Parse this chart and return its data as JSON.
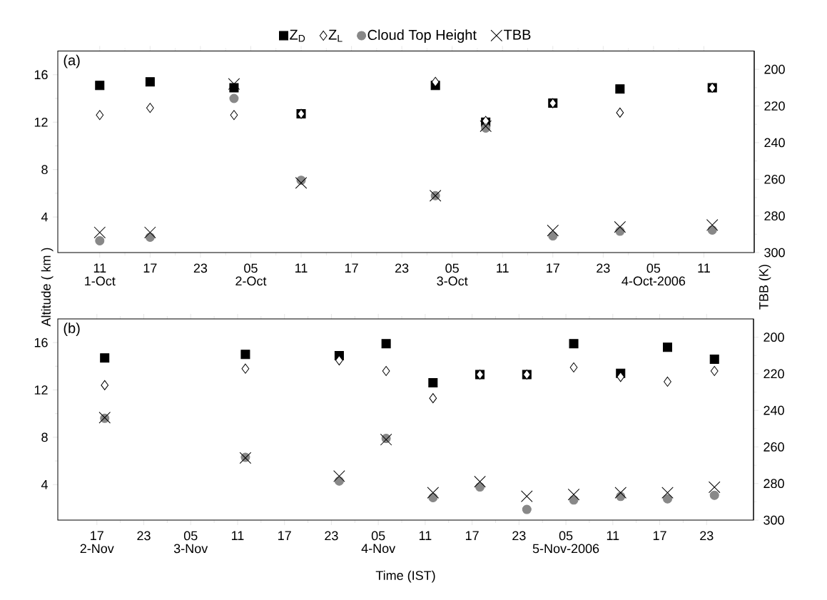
{
  "chart_data": [
    {
      "type": "scatter",
      "legend": "top",
      "ylabel": "Altitude ( km )",
      "y2label": "TBB (K)",
      "x": [
        "2006-10-01T11:00",
        "2006-10-01T17:00",
        "2006-10-02T03:00",
        "2006-10-02T11:00",
        "2006-10-03T03:00",
        "2006-10-03T09:00",
        "2006-10-03T17:00",
        "2006-10-04T01:00",
        "2006-10-04T12:00"
      ],
      "xlim": [
        "2006-10-01T06:00",
        "2006-10-04T17:00"
      ],
      "xticks": [
        {
          "value": "2006-10-01T11:00",
          "label": "11"
        },
        {
          "value": "2006-10-01T17:00",
          "label": "17"
        },
        {
          "value": "2006-10-01T23:00",
          "label": "23"
        },
        {
          "value": "2006-10-02T05:00",
          "label": "05"
        },
        {
          "value": "2006-10-02T11:00",
          "label": "11"
        },
        {
          "value": "2006-10-02T17:00",
          "label": "17"
        },
        {
          "value": "2006-10-02T23:00",
          "label": "23"
        },
        {
          "value": "2006-10-03T05:00",
          "label": "05"
        },
        {
          "value": "2006-10-03T11:00",
          "label": "11"
        },
        {
          "value": "2006-10-03T17:00",
          "label": "17"
        },
        {
          "value": "2006-10-03T23:00",
          "label": "23"
        },
        {
          "value": "2006-10-04T05:00",
          "label": "05"
        },
        {
          "value": "2006-10-04T11:00",
          "label": "11"
        }
      ],
      "ylim": [
        1,
        18
      ],
      "yticks": [
        4,
        8,
        12,
        16
      ],
      "y2lim": [
        300,
        190
      ],
      "y2ticks": [
        200,
        220,
        240,
        260,
        280,
        300
      ],
      "annotations": [
        "(a)",
        "1-Oct",
        "2-Oct",
        "3-Oct",
        "4-Oct-2006"
      ],
      "series": [
        {
          "name": "Z$_{D}$",
          "color": "#000000",
          "marker": "square",
          "values": [
            15.1,
            15.4,
            14.9,
            12.7,
            15.1,
            12.0,
            13.6,
            14.8,
            14.9
          ]
        },
        {
          "name": "Z$_{L}$",
          "color": "#000000",
          "marker": "diamond",
          "values": [
            12.6,
            13.2,
            12.6,
            12.7,
            15.4,
            12.1,
            13.6,
            12.8,
            14.9
          ]
        },
        {
          "name": "Cloud Top Height",
          "color": "#888888",
          "marker": "circle",
          "values": [
            2.0,
            2.3,
            14.0,
            7.1,
            5.8,
            11.5,
            2.4,
            2.8,
            2.9
          ]
        },
        {
          "name": "TBB",
          "color": "#000000",
          "marker": "cross",
          "axis": "y2",
          "values": [
            289,
            289,
            208,
            262,
            269,
            231,
            288,
            286,
            285
          ]
        }
      ]
    },
    {
      "type": "scatter",
      "xlabel": "Time (IST)",
      "x": [
        "2006-11-02T18:00",
        "2006-11-03T12:00",
        "2006-11-04T00:00",
        "2006-11-04T06:00",
        "2006-11-04T12:00",
        "2006-11-04T18:00",
        "2006-11-05T00:00",
        "2006-11-05T06:00",
        "2006-11-05T12:00",
        "2006-11-05T18:00",
        "2006-11-06T00:00"
      ],
      "xlim": [
        "2006-11-02T12:00",
        "2006-11-06T05:00"
      ],
      "xticks": [
        {
          "value": "2006-11-02T17:00",
          "label": "17"
        },
        {
          "value": "2006-11-02T23:00",
          "label": "23"
        },
        {
          "value": "2006-11-03T05:00",
          "label": "05"
        },
        {
          "value": "2006-11-03T11:00",
          "label": "11"
        },
        {
          "value": "2006-11-03T17:00",
          "label": "17"
        },
        {
          "value": "2006-11-03T23:00",
          "label": "23"
        },
        {
          "value": "2006-11-04T05:00",
          "label": "05"
        },
        {
          "value": "2006-11-04T11:00",
          "label": "11"
        },
        {
          "value": "2006-11-04T17:00",
          "label": "17"
        },
        {
          "value": "2006-11-04T23:00",
          "label": "23"
        },
        {
          "value": "2006-11-05T05:00",
          "label": "05"
        },
        {
          "value": "2006-11-05T11:00",
          "label": "11"
        },
        {
          "value": "2006-11-05T17:00",
          "label": "17"
        },
        {
          "value": "2006-11-05T23:00",
          "label": "23"
        }
      ],
      "ylim": [
        1,
        18
      ],
      "yticks": [
        4,
        8,
        12,
        16
      ],
      "y2lim": [
        300,
        190
      ],
      "y2ticks": [
        200,
        220,
        240,
        260,
        280,
        300
      ],
      "annotations": [
        "(b)",
        "2-Nov",
        "3-Nov",
        "4-Nov",
        "5-Nov-2006"
      ],
      "series": [
        {
          "color": "#000000",
          "marker": "square",
          "values": [
            14.7,
            15.0,
            14.9,
            15.9,
            12.6,
            13.3,
            13.3,
            15.9,
            13.4,
            15.6,
            14.6
          ]
        },
        {
          "color": "#000000",
          "marker": "diamond",
          "values": [
            12.4,
            13.8,
            14.5,
            13.6,
            11.3,
            13.3,
            13.3,
            13.9,
            13.1,
            12.7,
            13.6
          ]
        },
        {
          "color": "#888888",
          "marker": "circle",
          "values": [
            9.6,
            6.3,
            4.3,
            7.9,
            2.9,
            3.8,
            1.9,
            2.7,
            3.0,
            2.8,
            3.1
          ]
        },
        {
          "color": "#000000",
          "marker": "cross",
          "axis": "y2",
          "values": [
            244,
            266,
            276,
            256,
            285,
            279,
            287,
            286,
            285,
            285,
            282
          ]
        }
      ]
    }
  ]
}
